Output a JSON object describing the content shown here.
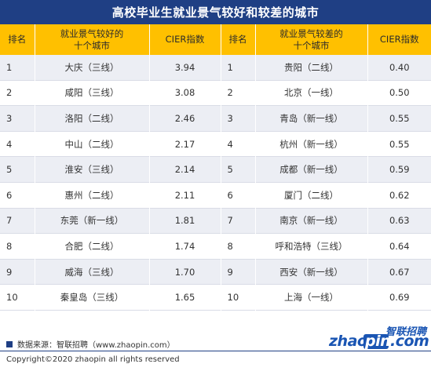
{
  "title": "高校毕业生就业景气较好和较差的城市",
  "headers": {
    "rank": "排名",
    "best_cities_line1": "就业景气较好的",
    "best_cities_line2": "十个城市",
    "cier": "CIER指数",
    "worst_cities_line1": "就业景气较差的",
    "worst_cities_line2": "十个城市"
  },
  "rows": [
    {
      "rank_good": "1",
      "good_city": "大庆（三线）",
      "good_cier": "3.94",
      "rank_bad": "1",
      "bad_city": "贵阳（二线）",
      "bad_cier": "0.40"
    },
    {
      "rank_good": "2",
      "good_city": "咸阳（三线）",
      "good_cier": "3.08",
      "rank_bad": "2",
      "bad_city": "北京（一线）",
      "bad_cier": "0.50"
    },
    {
      "rank_good": "3",
      "good_city": "洛阳（二线）",
      "good_cier": "2.46",
      "rank_bad": "3",
      "bad_city": "青岛（新一线）",
      "bad_cier": "0.55"
    },
    {
      "rank_good": "4",
      "good_city": "中山（二线）",
      "good_cier": "2.17",
      "rank_bad": "4",
      "bad_city": "杭州（新一线）",
      "bad_cier": "0.55"
    },
    {
      "rank_good": "5",
      "good_city": "淮安（三线）",
      "good_cier": "2.14",
      "rank_bad": "5",
      "bad_city": "成都（新一线）",
      "bad_cier": "0.59"
    },
    {
      "rank_good": "6",
      "good_city": "惠州（二线）",
      "good_cier": "2.11",
      "rank_bad": "6",
      "bad_city": "厦门（二线）",
      "bad_cier": "0.62"
    },
    {
      "rank_good": "7",
      "good_city": "东莞（新一线）",
      "good_cier": "1.81",
      "rank_bad": "7",
      "bad_city": "南京（新一线）",
      "bad_cier": "0.63"
    },
    {
      "rank_good": "8",
      "good_city": "合肥（二线）",
      "good_cier": "1.74",
      "rank_bad": "8",
      "bad_city": "呼和浩特（三线）",
      "bad_cier": "0.64"
    },
    {
      "rank_good": "9",
      "good_city": "威海（三线）",
      "good_cier": "1.70",
      "rank_bad": "9",
      "bad_city": "西安（新一线）",
      "bad_cier": "0.67"
    },
    {
      "rank_good": "10",
      "good_city": "秦皇岛（三线）",
      "good_cier": "1.65",
      "rank_bad": "10",
      "bad_city": "上海（一线）",
      "bad_cier": "0.69"
    }
  ],
  "footer": {
    "source": "数据来源：智联招聘（www.zhaopin.com）",
    "copyright": "Copyright©2020 zhaopin all rights reserved"
  },
  "logo": {
    "en_prefix": "zhao",
    "en_pin": "pin",
    "en_suffix": ".com",
    "cn": "智联招聘"
  },
  "colors": {
    "title_bg": "#1f3f84",
    "header_bg": "#ffc000",
    "stripe": "#eceef4",
    "logo_blue": "#1a55b3"
  }
}
